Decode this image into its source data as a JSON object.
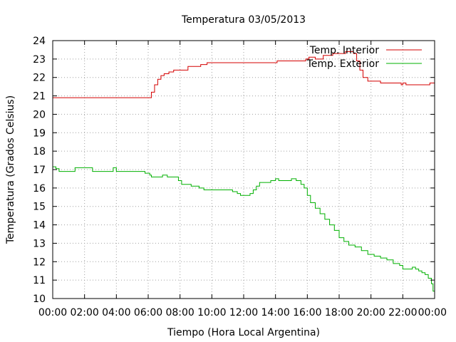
{
  "chart_data": {
    "type": "line",
    "title": "Temperatura 03/05/2013",
    "xlabel": "Tiempo (Hora Local Argentina)",
    "ylabel": "Temperatura (Grados Celsius)",
    "x_ticks": [
      "00:00",
      "02:00",
      "04:00",
      "06:00",
      "08:00",
      "10:00",
      "12:00",
      "14:00",
      "16:00",
      "18:00",
      "20:00",
      "22:00",
      "00:00"
    ],
    "y_ticks": [
      "10",
      "11",
      "12",
      "13",
      "14",
      "15",
      "16",
      "17",
      "18",
      "19",
      "20",
      "21",
      "22",
      "23",
      "24"
    ],
    "xlim": [
      0,
      24
    ],
    "ylim": [
      10,
      24
    ],
    "grid": true,
    "legend_position": "top-right",
    "series": [
      {
        "name": "Temp. Interior",
        "color": "#d40000",
        "points": [
          [
            0,
            20.9
          ],
          [
            6.0,
            20.9
          ],
          [
            6.2,
            21.2
          ],
          [
            6.4,
            21.6
          ],
          [
            6.6,
            21.9
          ],
          [
            6.8,
            22.1
          ],
          [
            7.0,
            22.2
          ],
          [
            7.3,
            22.3
          ],
          [
            7.6,
            22.4
          ],
          [
            8.4,
            22.4
          ],
          [
            8.5,
            22.6
          ],
          [
            9.2,
            22.6
          ],
          [
            9.3,
            22.7
          ],
          [
            9.7,
            22.8
          ],
          [
            14.0,
            22.8
          ],
          [
            14.1,
            22.9
          ],
          [
            15.6,
            22.9
          ],
          [
            15.9,
            23.0
          ],
          [
            16.1,
            23.1
          ],
          [
            16.5,
            23.0
          ],
          [
            17.0,
            23.2
          ],
          [
            17.6,
            23.3
          ],
          [
            18.0,
            23.3
          ],
          [
            18.4,
            23.4
          ],
          [
            18.9,
            23.3
          ],
          [
            19.1,
            22.9
          ],
          [
            19.3,
            22.4
          ],
          [
            19.5,
            22.0
          ],
          [
            19.8,
            21.8
          ],
          [
            20.4,
            21.8
          ],
          [
            20.6,
            21.7
          ],
          [
            21.7,
            21.7
          ],
          [
            21.9,
            21.6
          ],
          [
            22.0,
            21.7
          ],
          [
            22.2,
            21.6
          ],
          [
            23.6,
            21.6
          ],
          [
            23.7,
            21.7
          ],
          [
            24,
            21.7
          ]
        ]
      },
      {
        "name": "Temp. Exterior",
        "color": "#00b000",
        "points": [
          [
            0,
            17.15
          ],
          [
            0.2,
            17.05
          ],
          [
            0.4,
            16.9
          ],
          [
            1.3,
            16.9
          ],
          [
            1.4,
            17.1
          ],
          [
            2.4,
            17.1
          ],
          [
            2.5,
            16.9
          ],
          [
            3.7,
            16.9
          ],
          [
            3.8,
            17.1
          ],
          [
            4.0,
            16.9
          ],
          [
            5.6,
            16.9
          ],
          [
            5.8,
            16.8
          ],
          [
            6.1,
            16.7
          ],
          [
            6.2,
            16.6
          ],
          [
            6.8,
            16.6
          ],
          [
            6.9,
            16.7
          ],
          [
            7.2,
            16.6
          ],
          [
            7.6,
            16.6
          ],
          [
            7.9,
            16.4
          ],
          [
            8.1,
            16.2
          ],
          [
            8.5,
            16.2
          ],
          [
            8.7,
            16.1
          ],
          [
            9.2,
            16.0
          ],
          [
            9.5,
            15.9
          ],
          [
            11.0,
            15.9
          ],
          [
            11.3,
            15.8
          ],
          [
            11.6,
            15.7
          ],
          [
            11.8,
            15.6
          ],
          [
            12.4,
            15.7
          ],
          [
            12.6,
            15.9
          ],
          [
            12.8,
            16.1
          ],
          [
            13.0,
            16.3
          ],
          [
            13.5,
            16.3
          ],
          [
            13.7,
            16.4
          ],
          [
            14.0,
            16.5
          ],
          [
            14.2,
            16.4
          ],
          [
            14.9,
            16.4
          ],
          [
            15.0,
            16.5
          ],
          [
            15.3,
            16.4
          ],
          [
            15.6,
            16.2
          ],
          [
            15.8,
            16.0
          ],
          [
            16.0,
            15.6
          ],
          [
            16.2,
            15.2
          ],
          [
            16.5,
            14.9
          ],
          [
            16.8,
            14.6
          ],
          [
            17.1,
            14.3
          ],
          [
            17.4,
            14.0
          ],
          [
            17.7,
            13.7
          ],
          [
            18.0,
            13.3
          ],
          [
            18.3,
            13.1
          ],
          [
            18.6,
            12.9
          ],
          [
            19.0,
            12.8
          ],
          [
            19.4,
            12.6
          ],
          [
            19.8,
            12.4
          ],
          [
            20.2,
            12.3
          ],
          [
            20.6,
            12.2
          ],
          [
            21.0,
            12.1
          ],
          [
            21.4,
            11.9
          ],
          [
            21.8,
            11.8
          ],
          [
            22.0,
            11.6
          ],
          [
            22.5,
            11.6
          ],
          [
            22.6,
            11.7
          ],
          [
            22.8,
            11.6
          ],
          [
            23.0,
            11.5
          ],
          [
            23.2,
            11.4
          ],
          [
            23.4,
            11.3
          ],
          [
            23.6,
            11.1
          ],
          [
            23.8,
            10.8
          ],
          [
            23.9,
            10.4
          ],
          [
            24,
            10.3
          ]
        ]
      }
    ]
  }
}
